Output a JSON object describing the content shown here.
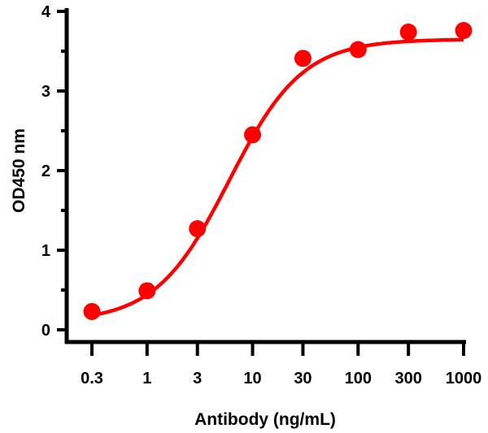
{
  "chart_data": {
    "type": "scatter",
    "title": "",
    "xlabel": "Antibody (ng/mL)",
    "ylabel": "OD450 nm",
    "x_scale": "log",
    "xlim": [
      0.3,
      1000
    ],
    "ylim": [
      0,
      4
    ],
    "x_ticks": [
      0.3,
      1,
      3,
      10,
      30,
      100,
      300,
      1000
    ],
    "x_tick_labels": [
      "0.3",
      "1",
      "3",
      "10",
      "30",
      "100",
      "300",
      "1000"
    ],
    "y_ticks": [
      0,
      1,
      2,
      3,
      4
    ],
    "y_tick_labels": [
      "0",
      "1",
      "2",
      "3",
      "4"
    ],
    "grid": false,
    "legend": "none",
    "color": "#ff0000",
    "points": {
      "x": [
        0.3,
        1,
        3,
        10,
        30,
        100,
        300,
        1000
      ],
      "y": [
        0.23,
        0.49,
        1.27,
        2.45,
        3.41,
        3.52,
        3.74,
        3.76
      ]
    },
    "fit_curve": {
      "model": "4PL",
      "bottom": 0.1,
      "top": 3.65,
      "ec50": 6,
      "hill": 1.25
    }
  }
}
